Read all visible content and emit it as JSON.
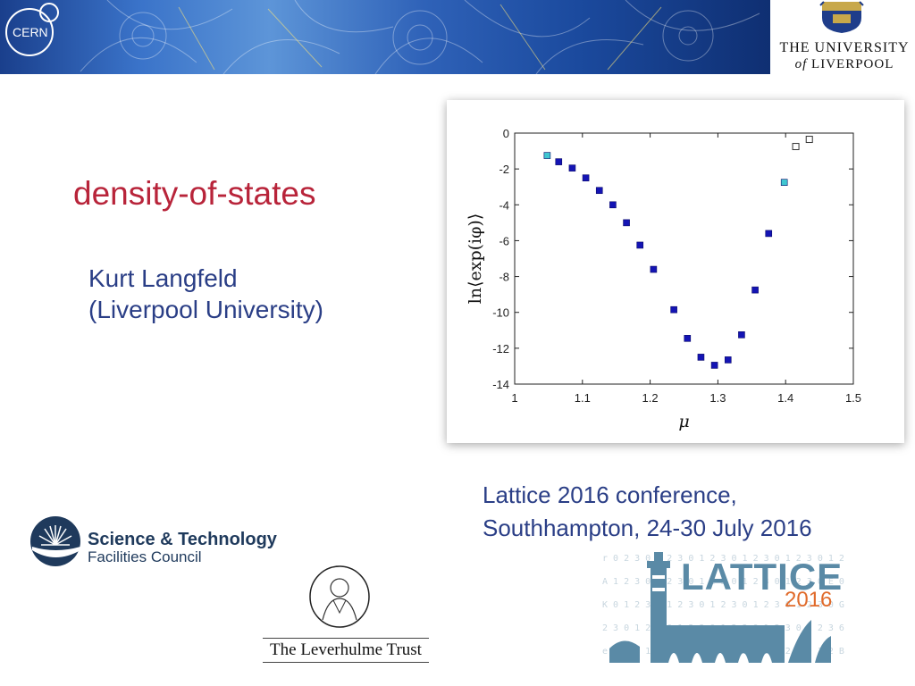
{
  "header": {
    "cern_logo_text": "CERN",
    "university": {
      "line1": "THE UNIVERSITY",
      "of": "of",
      "line2": "LIVERPOOL"
    }
  },
  "slide": {
    "title": "density-of-states",
    "author_line1": "Kurt Langfeld",
    "author_line2": "(Liverpool University)",
    "conference_line1": "Lattice 2016 conference,",
    "conference_line2": "Southhampton, 24-30 July 2016"
  },
  "logos": {
    "stfc_line1": "Science & Technology",
    "stfc_line2": "Facilities Council",
    "leverhulme": "The Leverhulme Trust",
    "lattice_title": "LATTICE",
    "lattice_year": "2016"
  },
  "colors": {
    "title": "#b8243a",
    "body_text": "#2a3e86",
    "marker_filled": "#1414b4",
    "marker_cyan": "#3fc6d0"
  },
  "chart_data": {
    "type": "scatter",
    "xlabel": "μ",
    "ylabel": "ln⟨exp(iφ)⟩",
    "xlim": [
      1,
      1.5
    ],
    "ylim": [
      -14,
      0
    ],
    "x_ticks": [
      1,
      1.1,
      1.2,
      1.3,
      1.4,
      1.5
    ],
    "y_ticks": [
      0,
      -2,
      -4,
      -6,
      -8,
      -10,
      -12,
      -14
    ],
    "x_tick_labels": [
      "1",
      "1.1",
      "1.2",
      "1.3",
      "1.4",
      "1.5"
    ],
    "y_tick_labels": [
      "0",
      "-2",
      "-4",
      "-6",
      "-8",
      "-10",
      "-12",
      "-14"
    ],
    "grid": false,
    "series": [
      {
        "marker": "filled-square",
        "color": "#1414b4",
        "points": [
          [
            1.065,
            -1.6
          ],
          [
            1.085,
            -1.95
          ],
          [
            1.105,
            -2.5
          ],
          [
            1.125,
            -3.2
          ],
          [
            1.145,
            -4.0
          ],
          [
            1.165,
            -5.0
          ],
          [
            1.185,
            -6.25
          ],
          [
            1.205,
            -7.6
          ],
          [
            1.235,
            -9.85
          ],
          [
            1.255,
            -11.45
          ],
          [
            1.275,
            -12.5
          ],
          [
            1.295,
            -12.95
          ],
          [
            1.315,
            -12.65
          ],
          [
            1.335,
            -11.25
          ],
          [
            1.355,
            -8.75
          ],
          [
            1.375,
            -5.6
          ]
        ]
      },
      {
        "marker": "cyan-square",
        "color": "#3fc6d0",
        "points": [
          [
            1.048,
            -1.25
          ],
          [
            1.398,
            -2.75
          ]
        ]
      },
      {
        "marker": "open-square",
        "color": "#ffffff",
        "points": [
          [
            1.415,
            -0.75
          ],
          [
            1.435,
            -0.35
          ]
        ]
      }
    ]
  }
}
